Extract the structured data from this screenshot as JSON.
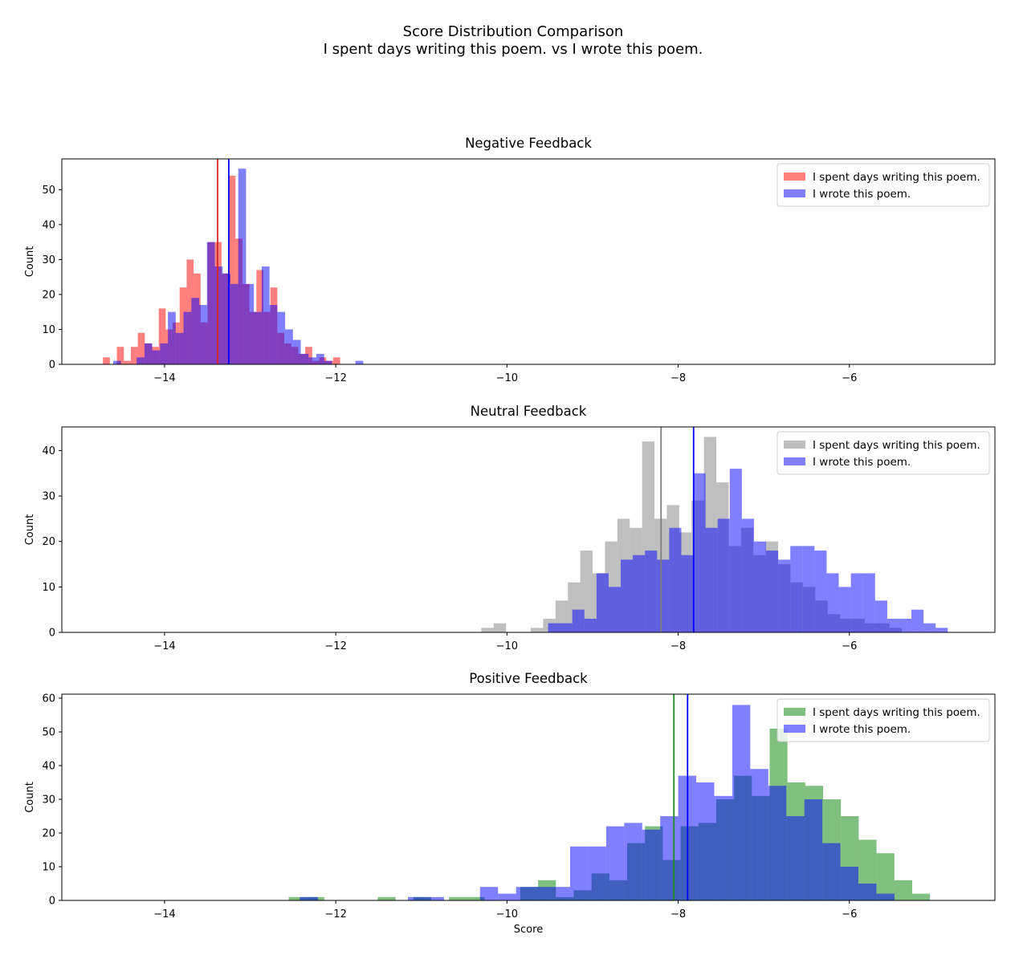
{
  "figure": {
    "title_line1": "Score Distribution Comparison",
    "title_line2": "I spent days writing this poem. vs I wrote this poem."
  },
  "chart_data": [
    {
      "type": "histogram",
      "title": "Negative Feedback",
      "xlabel": "",
      "ylabel": "Count",
      "xlim": [
        -15.2,
        -4.3
      ],
      "ylim": [
        0,
        58.8
      ],
      "xticks": [
        -14,
        -12,
        -10,
        -8,
        -6
      ],
      "xtick_labels": [
        "−14",
        "−12",
        "−10",
        "−8",
        "−6"
      ],
      "yticks": [
        0,
        10,
        20,
        30,
        40,
        50
      ],
      "grid": false,
      "legend_position": "top-right",
      "series": [
        {
          "name": "I spent days writing this poem.",
          "color": "#ff0000",
          "mean": -13.38,
          "mean_color": "#d62728",
          "bin_start": -14.72,
          "bin_width": 0.0815,
          "counts": [
            2,
            0,
            5,
            1,
            5,
            9,
            6,
            5,
            16,
            10,
            12,
            22,
            30,
            26,
            12,
            35,
            35,
            26,
            54,
            36,
            23,
            15,
            27,
            15,
            22,
            9,
            6,
            5,
            3,
            5,
            1,
            2,
            1,
            2
          ]
        },
        {
          "name": "I wrote this poem.",
          "color": "#0000ff",
          "mean": -13.25,
          "mean_color": "#0000ff",
          "bin_start": -14.6,
          "bin_width": 0.0913,
          "counts": [
            1,
            0,
            0,
            2,
            6,
            4,
            6,
            15,
            9,
            15,
            19,
            17,
            35,
            28,
            26,
            23,
            56,
            23,
            15,
            28,
            17,
            15,
            10,
            7,
            3,
            2,
            3,
            1,
            0,
            0,
            0,
            1
          ]
        }
      ]
    },
    {
      "type": "histogram",
      "title": "Neutral Feedback",
      "xlabel": "",
      "ylabel": "Count",
      "xlim": [
        -15.2,
        -4.3
      ],
      "ylim": [
        0,
        45.2
      ],
      "xticks": [
        -14,
        -12,
        -10,
        -8,
        -6
      ],
      "xtick_labels": [
        "−14",
        "−12",
        "−10",
        "−8",
        "−6"
      ],
      "yticks": [
        0,
        10,
        20,
        30,
        40
      ],
      "grid": false,
      "legend_position": "top-right",
      "series": [
        {
          "name": "I spent days writing this poem.",
          "color": "#808080",
          "mean": -8.2,
          "mean_color": "#808080",
          "bin_start": -10.3,
          "bin_width": 0.1445,
          "counts": [
            1,
            2,
            0,
            0,
            1,
            3,
            7,
            11,
            18,
            13,
            20,
            25,
            23,
            42,
            25,
            28,
            22,
            29,
            43,
            33,
            19,
            23,
            17,
            20,
            15,
            11,
            10,
            7,
            4,
            3,
            3,
            2,
            2,
            1
          ]
        },
        {
          "name": "I wrote this poem.",
          "color": "#0000ff",
          "mean": -7.82,
          "mean_color": "#0000ff",
          "bin_start": -9.52,
          "bin_width": 0.1415,
          "counts": [
            2,
            2,
            5,
            3,
            13,
            10,
            16,
            17,
            18,
            16,
            23,
            17,
            35,
            23,
            25,
            36,
            25,
            20,
            18,
            16,
            19,
            19,
            18,
            13,
            10,
            13,
            13,
            7,
            3,
            3,
            5,
            2,
            1,
            0,
            0,
            0,
            0,
            2
          ]
        }
      ]
    },
    {
      "type": "histogram",
      "title": "Positive Feedback",
      "xlabel": "Score",
      "ylabel": "Count",
      "xlim": [
        -15.2,
        -4.3
      ],
      "ylim": [
        0,
        61.2
      ],
      "xticks": [
        -14,
        -12,
        -10,
        -8,
        -6
      ],
      "xtick_labels": [
        "−14",
        "−12",
        "−10",
        "−8",
        "−6"
      ],
      "yticks": [
        0,
        10,
        20,
        30,
        40,
        50,
        60
      ],
      "grid": false,
      "legend_position": "top-right",
      "series": [
        {
          "name": "I spent days writing this poem.",
          "color": "#008000",
          "mean": -8.05,
          "mean_color": "#228b22",
          "bin_start": -12.55,
          "bin_width": 0.2081,
          "counts": [
            1,
            1,
            0,
            0,
            0,
            1,
            0,
            1,
            0,
            1,
            1,
            0,
            0,
            4,
            6,
            1,
            3,
            8,
            6,
            17,
            22,
            12,
            22,
            23,
            30,
            37,
            31,
            51,
            35,
            34,
            30,
            25,
            18,
            14,
            6,
            2
          ]
        },
        {
          "name": "I wrote this poem.",
          "color": "#0000ff",
          "mean": -7.89,
          "mean_color": "#0000ff",
          "bin_start": -12.42,
          "bin_width": 0.2105,
          "counts": [
            1,
            0,
            0,
            0,
            0,
            0,
            1,
            1,
            0,
            0,
            4,
            2,
            4,
            4,
            4,
            16,
            16,
            22,
            23,
            21,
            25,
            37,
            35,
            31,
            58,
            39,
            34,
            25,
            30,
            17,
            10,
            5,
            2
          ]
        }
      ]
    }
  ]
}
